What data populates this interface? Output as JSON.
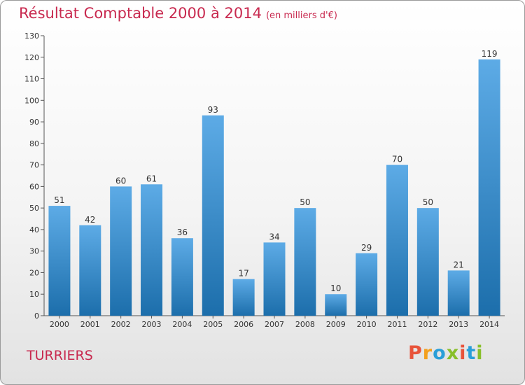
{
  "header": {
    "title": "Résultat Comptable 2000 à 2014",
    "subtitle": "(en milliers d'€)"
  },
  "footer": {
    "commune": "TURRIERS",
    "brand": "Proxiti"
  },
  "colors": {
    "title": "#c8294f",
    "bar_light": "#5dabe6",
    "bar_dark": "#1c6eab",
    "brand_letters": [
      "#e8533a",
      "#f3a01e",
      "#2a9fd8",
      "#88bf2a",
      "#e8533a",
      "#2a9fd8",
      "#88bf2a"
    ]
  },
  "chart_data": {
    "type": "bar",
    "title": "Résultat Comptable 2000 à 2014",
    "subtitle": "(en milliers d'€)",
    "categories": [
      "2000",
      "2001",
      "2002",
      "2003",
      "2004",
      "2005",
      "2006",
      "2007",
      "2008",
      "2009",
      "2010",
      "2011",
      "2012",
      "2013",
      "2014"
    ],
    "values": [
      51,
      42,
      60,
      61,
      36,
      93,
      17,
      34,
      50,
      10,
      29,
      70,
      50,
      21,
      119
    ],
    "ylim": [
      0,
      130
    ],
    "yticks": [
      0,
      10,
      20,
      30,
      40,
      50,
      60,
      70,
      80,
      90,
      100,
      110,
      120,
      130
    ],
    "grid": false,
    "data_labels": true,
    "xlabel": "",
    "ylabel": ""
  }
}
